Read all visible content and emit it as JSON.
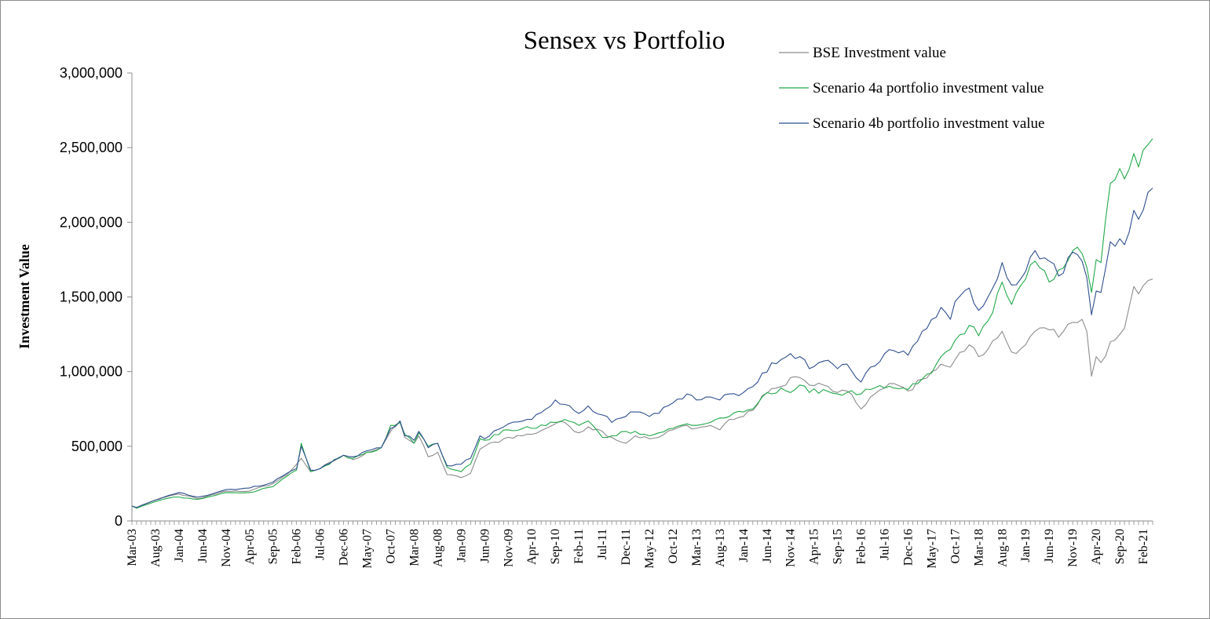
{
  "chart_data": {
    "type": "line",
    "title": "Sensex vs Portfolio",
    "ylabel": "Investment Value",
    "xlabel": "",
    "ylim": [
      0,
      3000000
    ],
    "yticks": [
      0,
      500000,
      1000000,
      1500000,
      2000000,
      2500000,
      3000000
    ],
    "ytick_labels": [
      "0",
      "500,000",
      "1,000,000",
      "1,500,000",
      "2,000,000",
      "2,500,000",
      "3,000,000"
    ],
    "xtick_labels": [
      "Mar-03",
      "Aug-03",
      "Jan-04",
      "Jun-04",
      "Nov-04",
      "Apr-05",
      "Sep-05",
      "Feb-06",
      "Jul-06",
      "Dec-06",
      "May-07",
      "Oct-07",
      "Mar-08",
      "Aug-08",
      "Jan-09",
      "Jun-09",
      "Nov-09",
      "Apr-10",
      "Sep-10",
      "Feb-11",
      "Jul-11",
      "Dec-11",
      "May-12",
      "Oct-12",
      "Mar-13",
      "Aug-13",
      "Jan-14",
      "Jun-14",
      "Nov-14",
      "Apr-15",
      "Sep-15",
      "Feb-16",
      "Jul-16",
      "Dec-16",
      "May-17",
      "Oct-17",
      "Mar-18",
      "Aug-18",
      "Jan-19",
      "Jun-19",
      "Nov-19",
      "Apr-20",
      "Sep-20",
      "Feb-21"
    ],
    "x_start": "Mar-03",
    "x_end": "Apr-21",
    "legend_position": "top-right",
    "grid": false,
    "series": [
      {
        "name": "BSE Investment value",
        "color": "#8c8c8c",
        "anchors": [
          [
            "Mar-03",
            100000
          ],
          [
            "Apr-03",
            90000
          ],
          [
            "Aug-03",
            140000
          ],
          [
            "Dec-03",
            175000
          ],
          [
            "Jan-04",
            180000
          ],
          [
            "May-04",
            150000
          ],
          [
            "Jun-04",
            155000
          ],
          [
            "Nov-04",
            200000
          ],
          [
            "Apr-05",
            200000
          ],
          [
            "Sep-05",
            250000
          ],
          [
            "Dec-05",
            310000
          ],
          [
            "Mar-06",
            420000
          ],
          [
            "May-06",
            330000
          ],
          [
            "Jun-06",
            340000
          ],
          [
            "Jul-06",
            350000
          ],
          [
            "Dec-06",
            440000
          ],
          [
            "Feb-07",
            410000
          ],
          [
            "May-07",
            460000
          ],
          [
            "Aug-07",
            490000
          ],
          [
            "Oct-07",
            600000
          ],
          [
            "Dec-07",
            660000
          ],
          [
            "Jan-08",
            560000
          ],
          [
            "Mar-08",
            520000
          ],
          [
            "Apr-08",
            570000
          ],
          [
            "Jun-08",
            430000
          ],
          [
            "Aug-08",
            460000
          ],
          [
            "Oct-08",
            310000
          ],
          [
            "Jan-09",
            290000
          ],
          [
            "Mar-09",
            320000
          ],
          [
            "May-09",
            480000
          ],
          [
            "Jun-09",
            500000
          ],
          [
            "Nov-09",
            560000
          ],
          [
            "Apr-10",
            580000
          ],
          [
            "Sep-10",
            650000
          ],
          [
            "Nov-10",
            660000
          ],
          [
            "Feb-11",
            590000
          ],
          [
            "Apr-11",
            630000
          ],
          [
            "Jul-11",
            600000
          ],
          [
            "Sep-11",
            560000
          ],
          [
            "Dec-11",
            520000
          ],
          [
            "Feb-12",
            570000
          ],
          [
            "May-12",
            550000
          ],
          [
            "Jul-12",
            560000
          ],
          [
            "Oct-12",
            610000
          ],
          [
            "Jan-13",
            640000
          ],
          [
            "Mar-13",
            620000
          ],
          [
            "Jun-13",
            640000
          ],
          [
            "Aug-13",
            610000
          ],
          [
            "Oct-13",
            680000
          ],
          [
            "Jan-14",
            700000
          ],
          [
            "Mar-14",
            740000
          ],
          [
            "May-14",
            840000
          ],
          [
            "Sep-14",
            900000
          ],
          [
            "Nov-14",
            960000
          ],
          [
            "Jan-15",
            960000
          ],
          [
            "Mar-15",
            910000
          ],
          [
            "Jun-15",
            910000
          ],
          [
            "Sep-15",
            860000
          ],
          [
            "Nov-15",
            870000
          ],
          [
            "Feb-16",
            750000
          ],
          [
            "Apr-16",
            830000
          ],
          [
            "Jul-16",
            890000
          ],
          [
            "Sep-16",
            920000
          ],
          [
            "Dec-16",
            870000
          ],
          [
            "Mar-17",
            950000
          ],
          [
            "May-17",
            1000000
          ],
          [
            "Jul-17",
            1050000
          ],
          [
            "Sep-17",
            1030000
          ],
          [
            "Oct-17",
            1080000
          ],
          [
            "Jan-18",
            1180000
          ],
          [
            "Mar-18",
            1100000
          ],
          [
            "May-18",
            1150000
          ],
          [
            "Aug-18",
            1270000
          ],
          [
            "Oct-18",
            1130000
          ],
          [
            "Jan-19",
            1180000
          ],
          [
            "Mar-19",
            1270000
          ],
          [
            "Jun-19",
            1280000
          ],
          [
            "Aug-19",
            1230000
          ],
          [
            "Nov-19",
            1330000
          ],
          [
            "Jan-20",
            1350000
          ],
          [
            "Feb-20",
            1270000
          ],
          [
            "Mar-20",
            970000
          ],
          [
            "Apr-20",
            1100000
          ],
          [
            "May-20",
            1060000
          ],
          [
            "Jul-20",
            1200000
          ],
          [
            "Sep-20",
            1250000
          ],
          [
            "Oct-20",
            1290000
          ],
          [
            "Dec-20",
            1570000
          ],
          [
            "Jan-21",
            1520000
          ],
          [
            "Mar-21",
            1610000
          ],
          [
            "Apr-21",
            1620000
          ]
        ]
      },
      {
        "name": "Scenario 4a portfolio investment value",
        "color": "#22a84a",
        "anchors": [
          [
            "Mar-03",
            100000
          ],
          [
            "Apr-03",
            85000
          ],
          [
            "Aug-03",
            130000
          ],
          [
            "Dec-03",
            160000
          ],
          [
            "Jan-04",
            160000
          ],
          [
            "May-04",
            145000
          ],
          [
            "Jun-04",
            150000
          ],
          [
            "Nov-04",
            190000
          ],
          [
            "Apr-05",
            190000
          ],
          [
            "Sep-05",
            230000
          ],
          [
            "Dec-05",
            300000
          ],
          [
            "Feb-06",
            340000
          ],
          [
            "Mar-06",
            520000
          ],
          [
            "May-06",
            330000
          ],
          [
            "Jul-06",
            350000
          ],
          [
            "Dec-06",
            440000
          ],
          [
            "Feb-07",
            420000
          ],
          [
            "May-07",
            460000
          ],
          [
            "Aug-07",
            490000
          ],
          [
            "Oct-07",
            640000
          ],
          [
            "Dec-07",
            660000
          ],
          [
            "Jan-08",
            580000
          ],
          [
            "Mar-08",
            520000
          ],
          [
            "Apr-08",
            590000
          ],
          [
            "Jun-08",
            500000
          ],
          [
            "Aug-08",
            520000
          ],
          [
            "Oct-08",
            360000
          ],
          [
            "Jan-09",
            330000
          ],
          [
            "Mar-09",
            380000
          ],
          [
            "May-09",
            550000
          ],
          [
            "Jun-09",
            540000
          ],
          [
            "Nov-09",
            610000
          ],
          [
            "Apr-10",
            620000
          ],
          [
            "Sep-10",
            660000
          ],
          [
            "Nov-10",
            680000
          ],
          [
            "Feb-11",
            640000
          ],
          [
            "Apr-11",
            670000
          ],
          [
            "Jul-11",
            560000
          ],
          [
            "Sep-11",
            570000
          ],
          [
            "Dec-11",
            600000
          ],
          [
            "Feb-12",
            600000
          ],
          [
            "May-12",
            570000
          ],
          [
            "Jul-12",
            590000
          ],
          [
            "Oct-12",
            620000
          ],
          [
            "Jan-13",
            650000
          ],
          [
            "Mar-13",
            640000
          ],
          [
            "Jun-13",
            660000
          ],
          [
            "Aug-13",
            690000
          ],
          [
            "Oct-13",
            700000
          ],
          [
            "Jan-14",
            730000
          ],
          [
            "Mar-14",
            750000
          ],
          [
            "May-14",
            830000
          ],
          [
            "Sep-14",
            890000
          ],
          [
            "Nov-14",
            860000
          ],
          [
            "Jan-15",
            910000
          ],
          [
            "Mar-15",
            860000
          ],
          [
            "Jun-15",
            880000
          ],
          [
            "Sep-15",
            850000
          ],
          [
            "Nov-15",
            860000
          ],
          [
            "Feb-16",
            850000
          ],
          [
            "Apr-16",
            880000
          ],
          [
            "Jul-16",
            890000
          ],
          [
            "Sep-16",
            890000
          ],
          [
            "Dec-16",
            880000
          ],
          [
            "Mar-17",
            950000
          ],
          [
            "May-17",
            990000
          ],
          [
            "Jul-17",
            1100000
          ],
          [
            "Sep-17",
            1150000
          ],
          [
            "Oct-17",
            1210000
          ],
          [
            "Jan-18",
            1310000
          ],
          [
            "Mar-18",
            1240000
          ],
          [
            "May-18",
            1340000
          ],
          [
            "Aug-18",
            1600000
          ],
          [
            "Oct-18",
            1450000
          ],
          [
            "Jan-19",
            1620000
          ],
          [
            "Mar-19",
            1740000
          ],
          [
            "Jun-19",
            1600000
          ],
          [
            "Aug-19",
            1680000
          ],
          [
            "Nov-19",
            1810000
          ],
          [
            "Jan-20",
            1790000
          ],
          [
            "Feb-20",
            1700000
          ],
          [
            "Mar-20",
            1530000
          ],
          [
            "Apr-20",
            1750000
          ],
          [
            "May-20",
            1730000
          ],
          [
            "Jul-20",
            2260000
          ],
          [
            "Sep-20",
            2360000
          ],
          [
            "Oct-20",
            2290000
          ],
          [
            "Dec-20",
            2460000
          ],
          [
            "Jan-21",
            2370000
          ],
          [
            "Mar-21",
            2520000
          ],
          [
            "Apr-21",
            2560000
          ]
        ]
      },
      {
        "name": "Scenario 4b portfolio investment value",
        "color": "#2f4f8f",
        "anchors": [
          [
            "Mar-03",
            100000
          ],
          [
            "Apr-03",
            90000
          ],
          [
            "Aug-03",
            140000
          ],
          [
            "Dec-03",
            180000
          ],
          [
            "Jan-04",
            190000
          ],
          [
            "May-04",
            160000
          ],
          [
            "Jun-04",
            165000
          ],
          [
            "Nov-04",
            210000
          ],
          [
            "Apr-05",
            220000
          ],
          [
            "Sep-05",
            260000
          ],
          [
            "Dec-05",
            320000
          ],
          [
            "Feb-06",
            350000
          ],
          [
            "Mar-06",
            500000
          ],
          [
            "May-06",
            340000
          ],
          [
            "Jul-06",
            350000
          ],
          [
            "Dec-06",
            440000
          ],
          [
            "Feb-07",
            430000
          ],
          [
            "May-07",
            470000
          ],
          [
            "Aug-07",
            490000
          ],
          [
            "Oct-07",
            620000
          ],
          [
            "Dec-07",
            670000
          ],
          [
            "Jan-08",
            570000
          ],
          [
            "Mar-08",
            540000
          ],
          [
            "Apr-08",
            600000
          ],
          [
            "Jun-08",
            490000
          ],
          [
            "Aug-08",
            520000
          ],
          [
            "Oct-08",
            370000
          ],
          [
            "Jan-09",
            380000
          ],
          [
            "Mar-09",
            420000
          ],
          [
            "May-09",
            570000
          ],
          [
            "Jun-09",
            550000
          ],
          [
            "Nov-09",
            650000
          ],
          [
            "Apr-10",
            680000
          ],
          [
            "Sep-10",
            810000
          ],
          [
            "Nov-10",
            780000
          ],
          [
            "Feb-11",
            720000
          ],
          [
            "Apr-11",
            770000
          ],
          [
            "Jul-11",
            710000
          ],
          [
            "Sep-11",
            660000
          ],
          [
            "Dec-11",
            700000
          ],
          [
            "Feb-12",
            730000
          ],
          [
            "May-12",
            700000
          ],
          [
            "Jul-12",
            720000
          ],
          [
            "Oct-12",
            790000
          ],
          [
            "Jan-13",
            850000
          ],
          [
            "Mar-13",
            810000
          ],
          [
            "Jun-13",
            830000
          ],
          [
            "Aug-13",
            810000
          ],
          [
            "Oct-13",
            850000
          ],
          [
            "Jan-14",
            860000
          ],
          [
            "Mar-14",
            900000
          ],
          [
            "May-14",
            990000
          ],
          [
            "Sep-14",
            1080000
          ],
          [
            "Nov-14",
            1120000
          ],
          [
            "Jan-15",
            1100000
          ],
          [
            "Mar-15",
            1020000
          ],
          [
            "Jun-15",
            1070000
          ],
          [
            "Sep-15",
            1020000
          ],
          [
            "Nov-15",
            1050000
          ],
          [
            "Feb-16",
            930000
          ],
          [
            "Apr-16",
            1030000
          ],
          [
            "Jul-16",
            1120000
          ],
          [
            "Sep-16",
            1140000
          ],
          [
            "Dec-16",
            1110000
          ],
          [
            "Mar-17",
            1270000
          ],
          [
            "May-17",
            1350000
          ],
          [
            "Jul-17",
            1430000
          ],
          [
            "Sep-17",
            1350000
          ],
          [
            "Oct-17",
            1470000
          ],
          [
            "Jan-18",
            1560000
          ],
          [
            "Mar-18",
            1410000
          ],
          [
            "May-18",
            1500000
          ],
          [
            "Aug-18",
            1730000
          ],
          [
            "Oct-18",
            1580000
          ],
          [
            "Jan-19",
            1670000
          ],
          [
            "Mar-19",
            1810000
          ],
          [
            "Jun-19",
            1740000
          ],
          [
            "Aug-19",
            1640000
          ],
          [
            "Nov-19",
            1800000
          ],
          [
            "Jan-20",
            1740000
          ],
          [
            "Feb-20",
            1630000
          ],
          [
            "Mar-20",
            1380000
          ],
          [
            "Apr-20",
            1540000
          ],
          [
            "May-20",
            1530000
          ],
          [
            "Jul-20",
            1870000
          ],
          [
            "Sep-20",
            1890000
          ],
          [
            "Oct-20",
            1850000
          ],
          [
            "Dec-20",
            2080000
          ],
          [
            "Jan-21",
            2020000
          ],
          [
            "Mar-21",
            2200000
          ],
          [
            "Apr-21",
            2230000
          ]
        ]
      }
    ]
  }
}
